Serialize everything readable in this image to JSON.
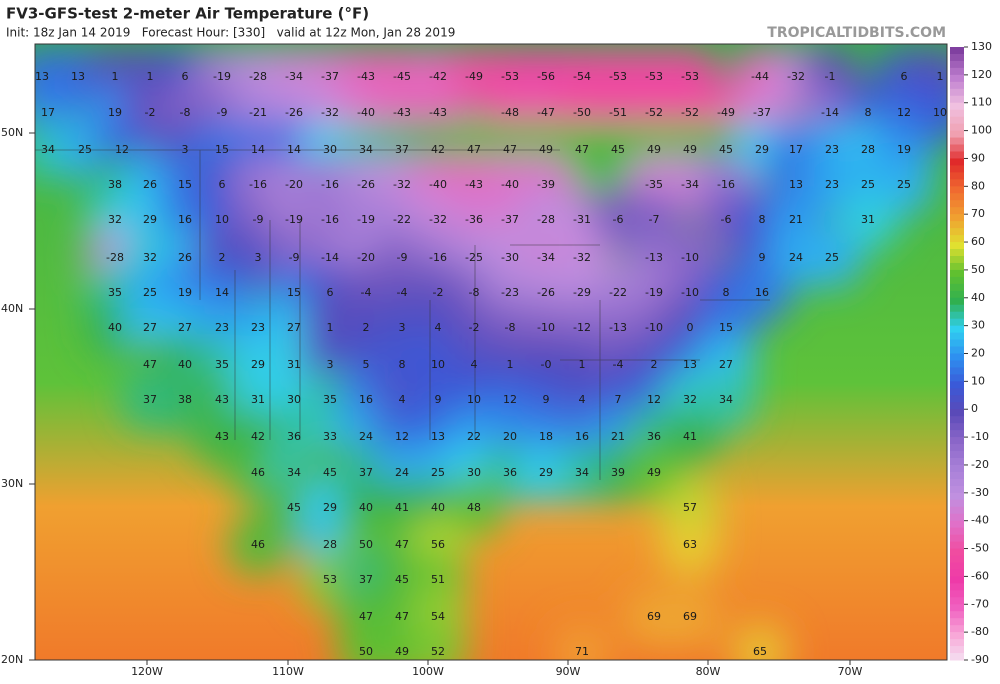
{
  "header": {
    "title": "FV3-GFS-test 2-meter Air Temperature (°F)",
    "subtitle": "Init: 18z Jan 14 2019   Forecast Hour: [330]   valid at 12z Mon, Jan 28 2019",
    "source": "TROPICALTIDBITS.COM"
  },
  "latitude_labels": [
    "50N",
    "40N",
    "30N",
    "20N"
  ],
  "longitude_labels": [
    "120W",
    "110W",
    "100W",
    "90W",
    "80W",
    "70W"
  ],
  "colorbar_ticks": [
    130,
    120,
    110,
    100,
    90,
    80,
    70,
    60,
    50,
    40,
    30,
    20,
    10,
    0,
    -10,
    -20,
    -30,
    -40,
    -50,
    -60,
    -70,
    -80,
    -90
  ],
  "temperature_labels": [
    [
      13,
      13,
      1,
      1,
      6,
      -19,
      -28,
      -34,
      -37,
      -43,
      -45,
      -42,
      -49,
      -53,
      -56,
      -54,
      -53,
      -53,
      -53,
      -44,
      -32,
      -1,
      6,
      1
    ],
    [
      17,
      19,
      -2,
      -8,
      -9,
      -21,
      -26,
      -32,
      -40,
      -43,
      -43,
      -48,
      -47,
      -50,
      -51,
      -52,
      -52,
      -49,
      -37,
      -14,
      8,
      12,
      10
    ],
    [
      34,
      25,
      12,
      3,
      15,
      14,
      14,
      30,
      34,
      37,
      42,
      47,
      47,
      49,
      47,
      45,
      49,
      49,
      45,
      29,
      17,
      23,
      28,
      19
    ],
    [
      38,
      26,
      15,
      6,
      -16,
      -20,
      -16,
      -26,
      -32,
      -40,
      -43,
      -40,
      -39,
      -35,
      -34,
      -16,
      13,
      23,
      25,
      25
    ],
    [
      32,
      29,
      16,
      10,
      -9,
      -19,
      -16,
      -19,
      -22,
      -32,
      -36,
      -37,
      -28,
      -31,
      -6,
      -7,
      -6,
      8,
      21,
      31
    ],
    [
      -28,
      32,
      26,
      2,
      3,
      -9,
      -14,
      -20,
      -9,
      -16,
      -25,
      -30,
      -34,
      -32,
      -13,
      -10,
      9,
      24,
      25
    ],
    [
      35,
      25,
      19,
      14,
      15,
      6,
      -4,
      -4,
      -2,
      -8,
      -23,
      -26,
      -29,
      -22,
      -19,
      -10,
      8,
      16
    ],
    [
      40,
      27,
      27,
      23,
      23,
      27,
      1,
      2,
      3,
      4,
      -2,
      -8,
      -10,
      -12,
      -13,
      -10,
      0,
      15
    ],
    [
      47,
      40,
      35,
      29,
      31,
      3,
      5,
      8,
      10,
      4,
      1,
      "-0",
      1,
      -4,
      2,
      13,
      27
    ],
    [
      37,
      38,
      43,
      31,
      30,
      35,
      16,
      4,
      9,
      10,
      12,
      9,
      4,
      7,
      12,
      32,
      34
    ],
    [
      43,
      42,
      36,
      33,
      24,
      12,
      13,
      22,
      20,
      18,
      16,
      21,
      36,
      41
    ],
    [
      46,
      34,
      45,
      37,
      24,
      25,
      30,
      36,
      29,
      34,
      39,
      49
    ],
    [
      45,
      29,
      40,
      41,
      40,
      48,
      57
    ],
    [
      46,
      28,
      50,
      47,
      56,
      63
    ],
    [
      53,
      37,
      45,
      51
    ],
    [
      47,
      47,
      54,
      69,
      69
    ],
    [
      50,
      49,
      52,
      71,
      65
    ]
  ]
}
